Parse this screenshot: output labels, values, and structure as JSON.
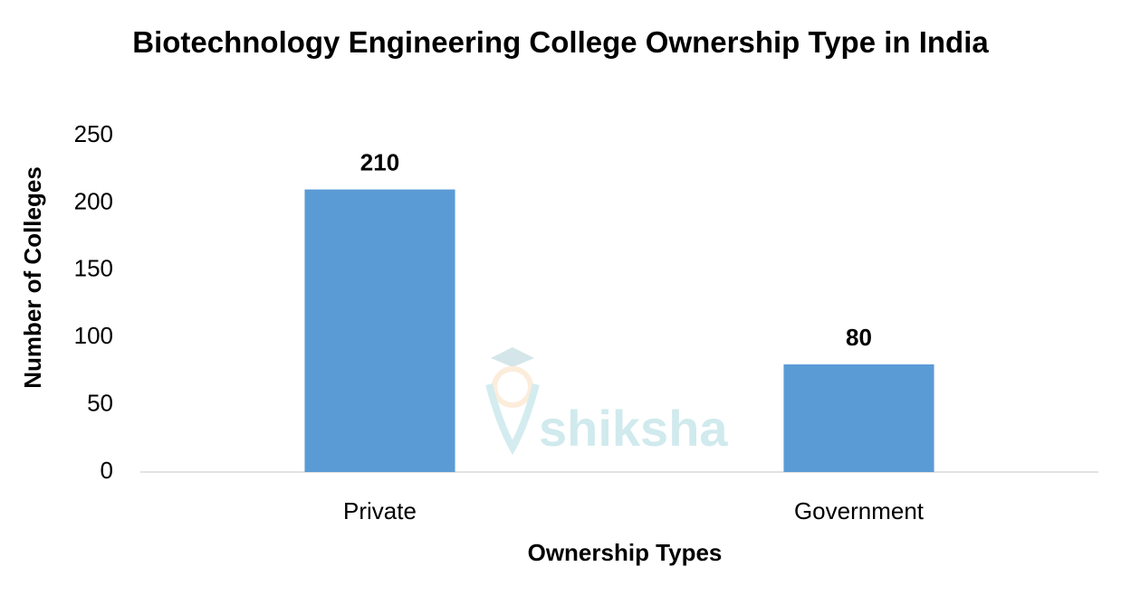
{
  "chart_data": {
    "type": "bar",
    "title": "Biotechnology Engineering College Ownership Type in India",
    "x_label": "Ownership Types",
    "y_label": "Number of Colleges",
    "categories": [
      "Private",
      "Government"
    ],
    "values": [
      210,
      80
    ],
    "color": "#5b9bd5",
    "ylim": [
      0,
      250
    ],
    "yticks": [
      0,
      50,
      100,
      150,
      200,
      250
    ],
    "grid": false,
    "watermark": "shiksha"
  }
}
